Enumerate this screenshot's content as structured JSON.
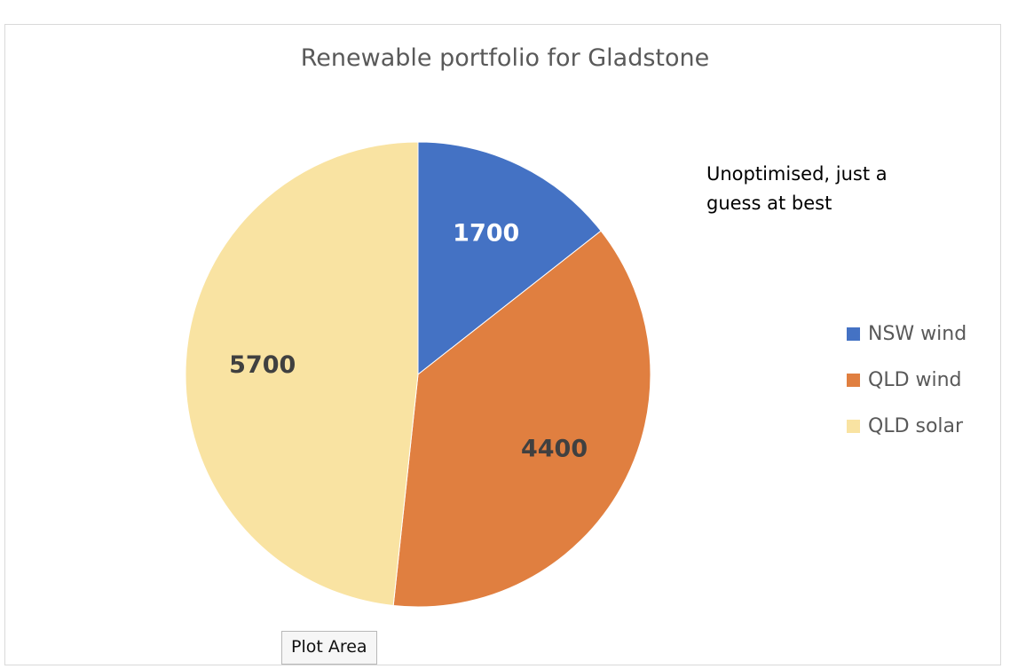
{
  "chart_data": {
    "type": "pie",
    "title": "Renewable portfolio for Gladstone",
    "categories": [
      "NSW wind",
      "QLD wind",
      "QLD solar"
    ],
    "values": [
      1700,
      4400,
      5700
    ],
    "colors": [
      "#4472C4",
      "#E07F40",
      "#F9E3A2"
    ],
    "data_label_colors": [
      "#ffffff",
      "#404040",
      "#404040"
    ],
    "start_angle_degrees": 0,
    "direction": "clockwise",
    "legend": {
      "position": "right",
      "entries": [
        "NSW wind",
        "QLD wind",
        "QLD solar"
      ]
    },
    "annotation": "Unoptimised, just a guess at best"
  },
  "tooltip": {
    "label": "Plot Area"
  }
}
